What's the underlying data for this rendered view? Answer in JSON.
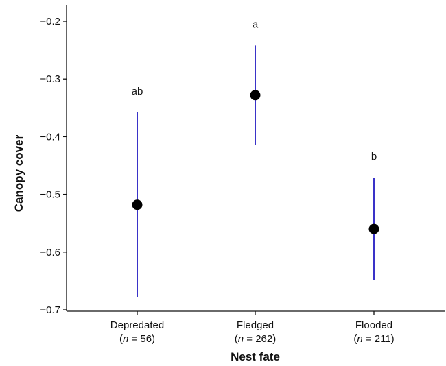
{
  "chart_data": {
    "type": "scatter",
    "xlabel": "Nest fate",
    "ylabel": "Canopy cover",
    "ylim": [
      -0.7,
      -0.2
    ],
    "yticks": [
      "-0.7",
      "-0.6",
      "-0.5",
      "-0.4",
      "-0.3",
      "-0.2"
    ],
    "yticks_display": [
      "−0.7",
      "−0.6",
      "−0.5",
      "−0.4",
      "−0.3",
      "−0.2"
    ],
    "grid": false,
    "error_bar_color": "#3a33c8",
    "point_color": "#000000",
    "categories": [
      {
        "name": "Depredated",
        "n_prefix": "(",
        "n_var": "n",
        "n_eq": " = 56)",
        "value": -0.518,
        "lower": -0.678,
        "upper": -0.358,
        "sig": "ab"
      },
      {
        "name": "Fledged",
        "n_prefix": "(",
        "n_var": "n",
        "n_eq": " = 262)",
        "value": -0.328,
        "lower": -0.415,
        "upper": -0.242,
        "sig": "a"
      },
      {
        "name": "Flooded",
        "n_prefix": "(",
        "n_var": "n",
        "n_eq": " = 211)",
        "value": -0.56,
        "lower": -0.648,
        "upper": -0.471,
        "sig": "b"
      }
    ]
  }
}
